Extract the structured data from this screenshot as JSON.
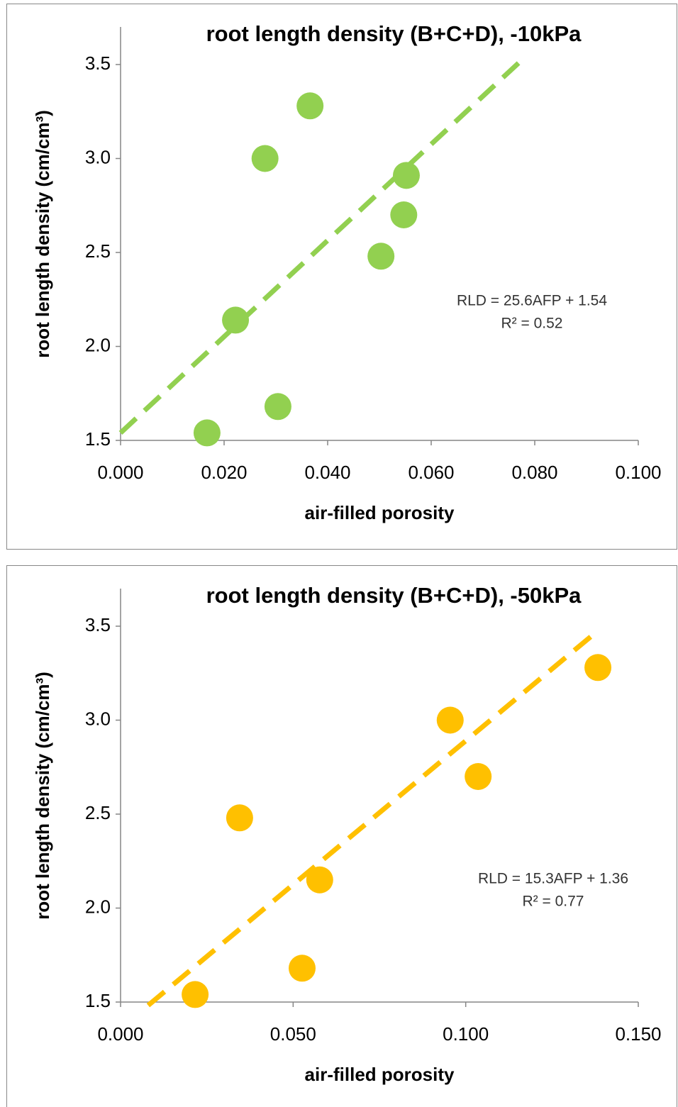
{
  "chart_data": [
    {
      "type": "scatter",
      "title": "root length density (B+C+D), -10kPa",
      "xlabel": "air-filled porosity",
      "ylabel": "root length density (cm/cm³)",
      "x": [
        0.0167,
        0.0222,
        0.0279,
        0.0304,
        0.0366,
        0.0503,
        0.0547,
        0.0552
      ],
      "values": [
        1.54,
        2.14,
        3.0,
        1.68,
        3.28,
        2.48,
        2.7,
        2.91
      ],
      "color": "#92d050",
      "trendline": {
        "slope": 25.6,
        "intercept": 1.54,
        "x": [
          0,
          0.0774
        ],
        "color": "#92d050"
      },
      "annotations": [
        "RLD = 25.6AFP + 1.54",
        "R² = 0.52"
      ],
      "xlim": [
        0,
        0.1
      ],
      "xticks": [
        {
          "value": 0,
          "label": "0.000"
        },
        {
          "value": 0.02,
          "label": "0.020"
        },
        {
          "value": 0.04,
          "label": "0.040"
        },
        {
          "value": 0.06,
          "label": "0.060"
        },
        {
          "value": 0.08,
          "label": "0.080"
        },
        {
          "value": 0.1,
          "label": "0.100"
        }
      ],
      "ylim": [
        1.5,
        3.7
      ],
      "yticks": [
        1.5,
        {
          "value": 2,
          "label": "2.0"
        },
        2.5,
        {
          "value": 3,
          "label": "3.0"
        },
        3.5
      ],
      "grid": false
    },
    {
      "type": "scatter",
      "title": "root length density (B+C+D), -50kPa",
      "xlabel": "air-filled porosity",
      "ylabel": "root length density (cm/cm³)",
      "x": [
        0.0216,
        0.0345,
        0.0526,
        0.0577,
        0.0955,
        0.1036,
        0.1383
      ],
      "values": [
        1.54,
        2.48,
        1.68,
        2.15,
        3.0,
        2.7,
        3.28
      ],
      "color": "#ffc000",
      "trendline": {
        "slope": 15.3,
        "intercept": 1.36,
        "x": [
          0.008,
          0.137
        ],
        "color": "#ffc000"
      },
      "annotations": [
        "RLD = 15.3AFP + 1.36",
        "R² = 0.77"
      ],
      "xlim": [
        0,
        0.15
      ],
      "xticks": [
        {
          "value": 0,
          "label": "0.000"
        },
        {
          "value": 0.05,
          "label": "0.050"
        },
        {
          "value": 0.1,
          "label": "0.100"
        },
        {
          "value": 0.15,
          "label": "0.150"
        }
      ],
      "ylim": [
        1.5,
        3.7
      ],
      "yticks": [
        1.5,
        {
          "value": 2,
          "label": "2.0"
        },
        2.5,
        {
          "value": 3,
          "label": "3.0"
        },
        3.5
      ],
      "grid": false
    }
  ]
}
